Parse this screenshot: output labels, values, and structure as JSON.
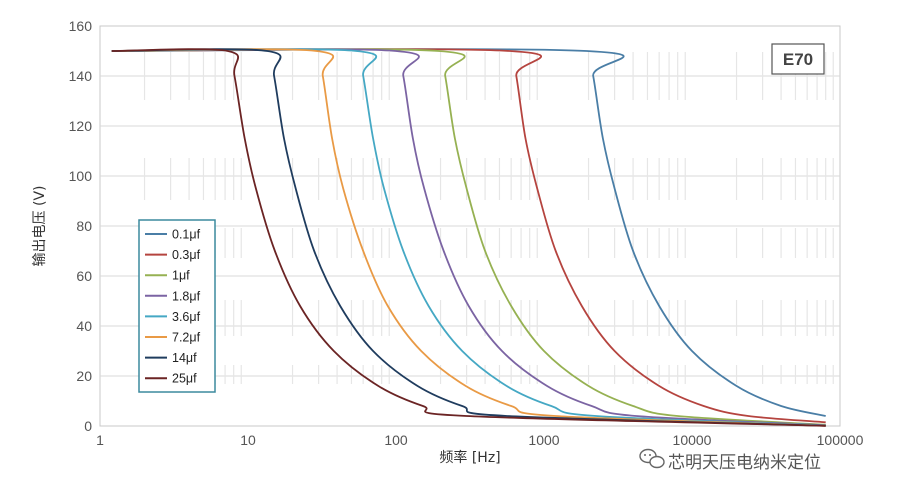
{
  "chart_data": {
    "type": "line",
    "tag": "E70",
    "xlabel": "频率 [Hz]",
    "ylabel": "输出电压 (V)",
    "xscale": "log",
    "xlim": [
      1,
      100000
    ],
    "ylim": [
      0,
      160
    ],
    "x_ticks": [
      "1",
      "10",
      "100",
      "1000",
      "10000",
      "100000"
    ],
    "y_ticks": [
      "0",
      "20",
      "40",
      "60",
      "80",
      "100",
      "120",
      "140",
      "160"
    ],
    "grid": "horizontal",
    "legend_position": "left-middle",
    "series": [
      {
        "name": "0.1μf",
        "color": "#4a7ea6",
        "points": [
          [
            1.2,
            150
          ],
          [
            1950,
            150
          ],
          [
            2150,
            140
          ],
          [
            2500,
            115
          ],
          [
            3000,
            95
          ],
          [
            4000,
            70
          ],
          [
            6000,
            48
          ],
          [
            10000,
            30
          ],
          [
            20000,
            16
          ],
          [
            40000,
            8
          ],
          [
            80000,
            4
          ]
        ]
      },
      {
        "name": "0.3μf",
        "color": "#b5443f",
        "points": [
          [
            1.2,
            150
          ],
          [
            590,
            150
          ],
          [
            650,
            140
          ],
          [
            750,
            115
          ],
          [
            900,
            95
          ],
          [
            1200,
            70
          ],
          [
            1800,
            48
          ],
          [
            3000,
            30
          ],
          [
            6000,
            16
          ],
          [
            12000,
            8
          ],
          [
            24000,
            4
          ],
          [
            80000,
            1.5
          ]
        ]
      },
      {
        "name": "1μf",
        "color": "#96b152",
        "points": [
          [
            1.2,
            150
          ],
          [
            195,
            150
          ],
          [
            215,
            140
          ],
          [
            250,
            115
          ],
          [
            300,
            95
          ],
          [
            400,
            70
          ],
          [
            600,
            48
          ],
          [
            1000,
            30
          ],
          [
            2000,
            16
          ],
          [
            4000,
            8
          ],
          [
            8000,
            4
          ],
          [
            80000,
            0.5
          ]
        ]
      },
      {
        "name": "1.8μf",
        "color": "#7b64a3",
        "points": [
          [
            1.2,
            150
          ],
          [
            100,
            150
          ],
          [
            112,
            140
          ],
          [
            130,
            115
          ],
          [
            155,
            95
          ],
          [
            210,
            70
          ],
          [
            310,
            48
          ],
          [
            520,
            30
          ],
          [
            1050,
            16
          ],
          [
            2100,
            8
          ],
          [
            4200,
            4
          ],
          [
            80000,
            0.3
          ]
        ]
      },
      {
        "name": "3.6μf",
        "color": "#45a8c4",
        "points": [
          [
            1.2,
            150
          ],
          [
            54,
            150
          ],
          [
            60,
            140
          ],
          [
            70,
            115
          ],
          [
            83,
            95
          ],
          [
            112,
            70
          ],
          [
            166,
            48
          ],
          [
            280,
            30
          ],
          [
            560,
            16
          ],
          [
            1120,
            8
          ],
          [
            2250,
            4
          ],
          [
            80000,
            0.2
          ]
        ]
      },
      {
        "name": "7.2μf",
        "color": "#e99a45",
        "points": [
          [
            1.2,
            150
          ],
          [
            29,
            150
          ],
          [
            32,
            140
          ],
          [
            37,
            115
          ],
          [
            44,
            95
          ],
          [
            60,
            70
          ],
          [
            88,
            48
          ],
          [
            148,
            30
          ],
          [
            296,
            16
          ],
          [
            600,
            8
          ],
          [
            1200,
            4
          ],
          [
            80000,
            0.1
          ]
        ]
      },
      {
        "name": "14μf",
        "color": "#1f3c5e",
        "points": [
          [
            1.2,
            150
          ],
          [
            13.5,
            150
          ],
          [
            15,
            140
          ],
          [
            17.5,
            115
          ],
          [
            21,
            95
          ],
          [
            28,
            70
          ],
          [
            42,
            48
          ],
          [
            70,
            30
          ],
          [
            140,
            16
          ],
          [
            280,
            8
          ],
          [
            560,
            4
          ],
          [
            80000,
            0.1
          ]
        ]
      },
      {
        "name": "25μf",
        "color": "#6b2424",
        "points": [
          [
            1.2,
            150
          ],
          [
            7.3,
            150
          ],
          [
            8.1,
            140
          ],
          [
            9.5,
            115
          ],
          [
            11.3,
            95
          ],
          [
            15.2,
            70
          ],
          [
            22.5,
            48
          ],
          [
            38,
            30
          ],
          [
            76,
            16
          ],
          [
            152,
            8
          ],
          [
            300,
            4
          ],
          [
            80000,
            0.1
          ]
        ]
      }
    ]
  },
  "watermark": {
    "text": "芯明天压电纳米定位",
    "icon": "wechat-icon"
  }
}
